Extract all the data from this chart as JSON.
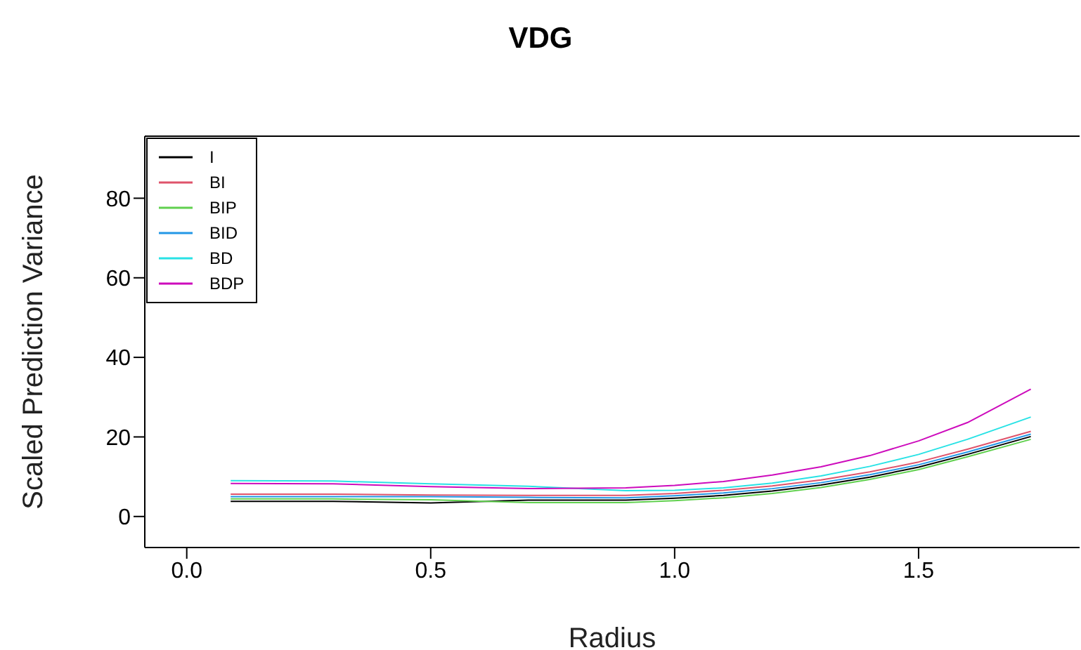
{
  "chart_data": {
    "type": "line",
    "title": "VDG",
    "xlabel": "Radius",
    "ylabel": "Scaled Prediction Variance",
    "x": [
      0.09,
      0.3,
      0.5,
      0.7,
      0.9,
      1.0,
      1.1,
      1.2,
      1.3,
      1.4,
      1.5,
      1.6,
      1.73
    ],
    "series": [
      {
        "name": "I",
        "color": "#000000",
        "values": [
          3.8,
          3.8,
          3.4,
          4.1,
          4.1,
          4.6,
          5.3,
          6.4,
          7.9,
          9.9,
          12.4,
          15.6,
          20.1
        ]
      },
      {
        "name": "BI",
        "color": "#df536b",
        "values": [
          5.6,
          5.6,
          5.4,
          5.3,
          5.3,
          5.8,
          6.6,
          7.7,
          9.2,
          11.2,
          13.7,
          16.9,
          21.4
        ]
      },
      {
        "name": "BIP",
        "color": "#61d04f",
        "values": [
          4.4,
          4.4,
          4.2,
          3.5,
          3.5,
          4.0,
          4.7,
          5.8,
          7.3,
          9.3,
          11.8,
          15.0,
          19.4
        ]
      },
      {
        "name": "BID",
        "color": "#2297e6",
        "values": [
          5.0,
          5.0,
          5.0,
          4.8,
          4.7,
          5.2,
          5.9,
          7.0,
          8.5,
          10.5,
          13.0,
          16.2,
          20.7
        ]
      },
      {
        "name": "BD",
        "color": "#28e2e5",
        "values": [
          9.0,
          8.9,
          8.2,
          7.6,
          6.5,
          6.6,
          7.2,
          8.4,
          10.2,
          12.6,
          15.6,
          19.4,
          25
        ]
      },
      {
        "name": "BDP",
        "color": "#cd0bbc",
        "values": [
          8.3,
          8.2,
          7.5,
          7.0,
          7.2,
          7.8,
          8.8,
          10.4,
          12.5,
          15.3,
          19.0,
          23.6,
          32
        ]
      }
    ],
    "xlim": [
      -0.086,
      1.83
    ],
    "ylim": [
      -7.8,
      95.6
    ],
    "xticks": [
      {
        "value": 0,
        "label": "0.0"
      },
      {
        "value": 0.5,
        "label": "0.5"
      },
      {
        "value": 1,
        "label": "1.0"
      },
      {
        "value": 1.5,
        "label": "1.5"
      }
    ],
    "yticks": [
      0,
      20,
      40,
      60,
      80
    ],
    "legend": "top left",
    "grid": false
  }
}
